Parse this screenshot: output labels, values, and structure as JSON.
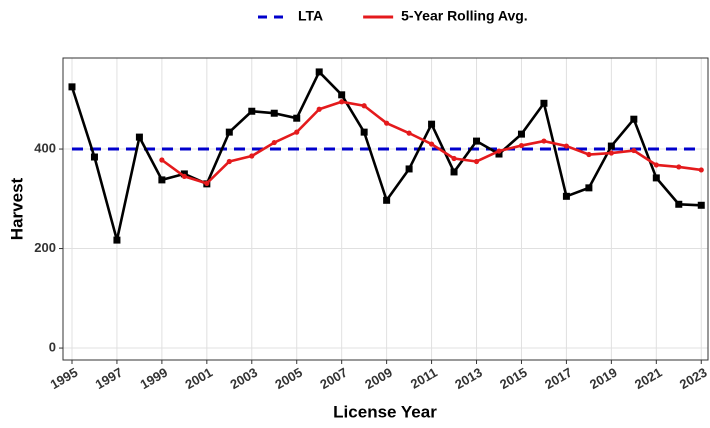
{
  "chart_data": {
    "type": "line",
    "x_label": "License Year",
    "y_label": "Harvest",
    "x": [
      1995,
      1996,
      1997,
      1998,
      1999,
      2000,
      2001,
      2002,
      2003,
      2004,
      2005,
      2006,
      2007,
      2008,
      2009,
      2010,
      2011,
      2012,
      2013,
      2014,
      2015,
      2016,
      2017,
      2018,
      2019,
      2020,
      2021,
      2022,
      2023
    ],
    "series": [
      {
        "color": "#000000",
        "marker": "square",
        "values": [
          525,
          384,
          217,
          424,
          338,
          350,
          330,
          434,
          476,
          472,
          462,
          555,
          509,
          434,
          297,
          360,
          450,
          354,
          416,
          390,
          430,
          492,
          305,
          322,
          406,
          460,
          342,
          289,
          287
        ]
      },
      {
        "name": "5-Year Rolling Avg.",
        "color": "#e41a1c",
        "marker": "circle",
        "values": [
          null,
          null,
          null,
          null,
          378,
          345,
          331,
          375,
          386,
          413,
          434,
          480,
          495,
          487,
          452,
          432,
          410,
          381,
          375,
          396,
          407,
          416,
          406,
          389,
          392,
          397,
          368,
          364,
          358
        ]
      }
    ],
    "reference_lines": [
      {
        "name": "LTA",
        "value": 400,
        "color": "#0000cc",
        "dashed": true
      }
    ],
    "xlim": [
      1994.6,
      2023.3
    ],
    "ylim": [
      -24,
      583
    ],
    "xticks": [
      1995,
      1997,
      1999,
      2001,
      2003,
      2005,
      2007,
      2009,
      2011,
      2013,
      2015,
      2017,
      2019,
      2021,
      2023
    ],
    "yticks": [
      0,
      200,
      400
    ],
    "grid": true,
    "legend_position": "top"
  }
}
